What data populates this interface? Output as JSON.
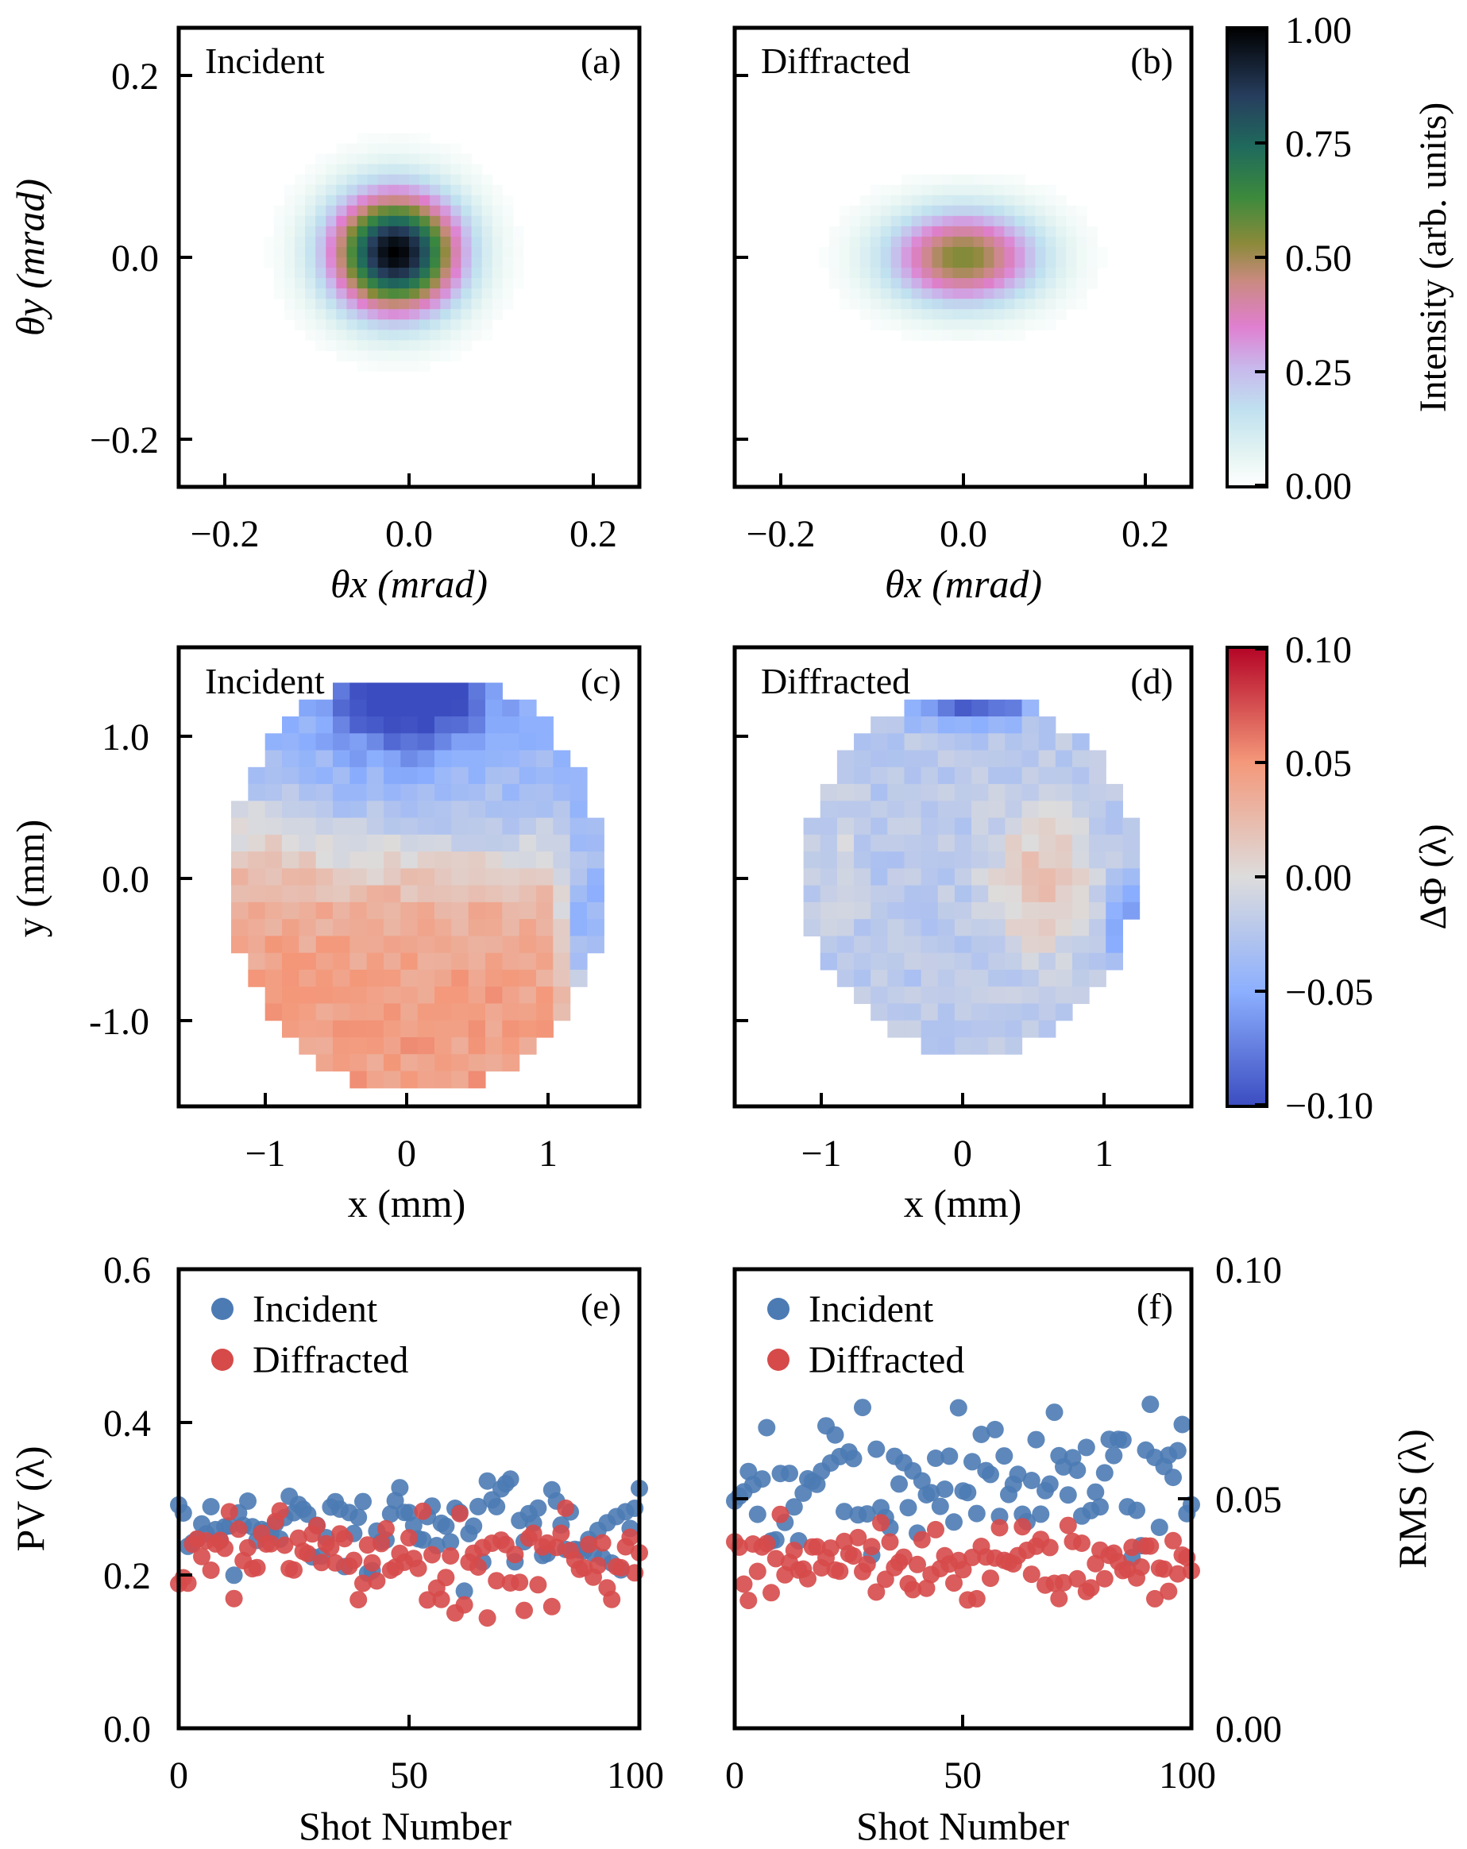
{
  "figure": {
    "colorbar_intensity": {
      "label": "Intensity (arb. units)",
      "ticks": [
        "1.00",
        "0.75",
        "0.50",
        "0.25",
        "0.00"
      ],
      "colormap": "cubehelix-like: white → cyan → lilac → pink → olive/green → black"
    },
    "colorbar_phase": {
      "label": "ΔΦ (λ)",
      "ticks": [
        "0.10",
        "0.05",
        "0.00",
        "−0.05",
        "−0.10"
      ],
      "colormap": "coolwarm: #3b4cc0 → #dddddd → #b40426"
    }
  },
  "chart_data": [
    {
      "panel": "a",
      "type": "heatmap",
      "label": "Incident",
      "tag": "(a)",
      "xlabel": "θx (mrad)",
      "ylabel": "θy (mrad)",
      "xlim": [
        -0.25,
        0.25
      ],
      "ylim": [
        -0.25,
        0.25
      ],
      "xticks": [
        "−0.2",
        "0.0",
        "0.2"
      ],
      "yticks": [
        "0.2",
        "0.0",
        "−0.2"
      ],
      "peak": {
        "x": -0.015,
        "y": 0.005,
        "intensity": 1.0
      },
      "sigma_x": 0.048,
      "sigma_y": 0.045
    },
    {
      "panel": "b",
      "type": "heatmap",
      "label": "Diffracted",
      "tag": "(b)",
      "xlabel": "θx (mrad)",
      "xlim": [
        -0.25,
        0.25
      ],
      "ylim": [
        -0.25,
        0.25
      ],
      "xticks": [
        "−0.2",
        "0.0",
        "0.2"
      ],
      "peak": {
        "x": 0.0,
        "y": 0.0,
        "intensity": 0.55
      },
      "sigma_x": 0.058,
      "sigma_y": 0.036
    },
    {
      "panel": "c",
      "type": "heatmap",
      "label": "Incident",
      "tag": "(c)",
      "xlabel": "x (mm)",
      "ylabel": "y (mm)",
      "xlim": [
        -1.6,
        1.6
      ],
      "ylim": [
        -1.6,
        1.6
      ],
      "xticks": [
        "−1",
        "0",
        "1"
      ],
      "yticks": [
        "1.0",
        "0.0",
        "-1.0"
      ],
      "value_range": [
        -0.1,
        0.1
      ]
    },
    {
      "panel": "d",
      "type": "heatmap",
      "label": "Diffracted",
      "tag": "(d)",
      "xlabel": "x (mm)",
      "xlim": [
        -1.6,
        1.6
      ],
      "ylim": [
        -1.6,
        1.6
      ],
      "xticks": [
        "−1",
        "0",
        "1"
      ],
      "value_range": [
        -0.1,
        0.1
      ]
    },
    {
      "panel": "e",
      "type": "scatter",
      "tag": "(e)",
      "xlabel": "Shot Number",
      "ylabel": "PV (λ)",
      "xlim": [
        0,
        100
      ],
      "ylim": [
        0,
        0.6
      ],
      "xticks": [
        "0",
        "50",
        "100"
      ],
      "yticks": [
        "0.6",
        "0.4",
        "0.2",
        "0.0"
      ],
      "legend": "top-left",
      "series": [
        {
          "name": "Incident",
          "color": "#4c7bb4",
          "mean": 0.26,
          "spread": 0.05
        },
        {
          "name": "Diffracted",
          "color": "#d64a4a",
          "mean": 0.22,
          "spread": 0.045
        }
      ]
    },
    {
      "panel": "f",
      "type": "scatter",
      "tag": "(f)",
      "xlabel": "Shot Number",
      "ylabel": "RMS (λ)",
      "xlim": [
        0,
        100
      ],
      "ylim": [
        0,
        0.1
      ],
      "xticks": [
        "0",
        "50",
        "100"
      ],
      "yticks": [
        "0.10",
        "0.05",
        "0.00"
      ],
      "legend": "top-left",
      "series": [
        {
          "name": "Incident",
          "color": "#4c7bb4",
          "mean": 0.054,
          "spread": 0.011
        },
        {
          "name": "Diffracted",
          "color": "#d64a4a",
          "mean": 0.036,
          "spread": 0.007
        }
      ]
    }
  ]
}
